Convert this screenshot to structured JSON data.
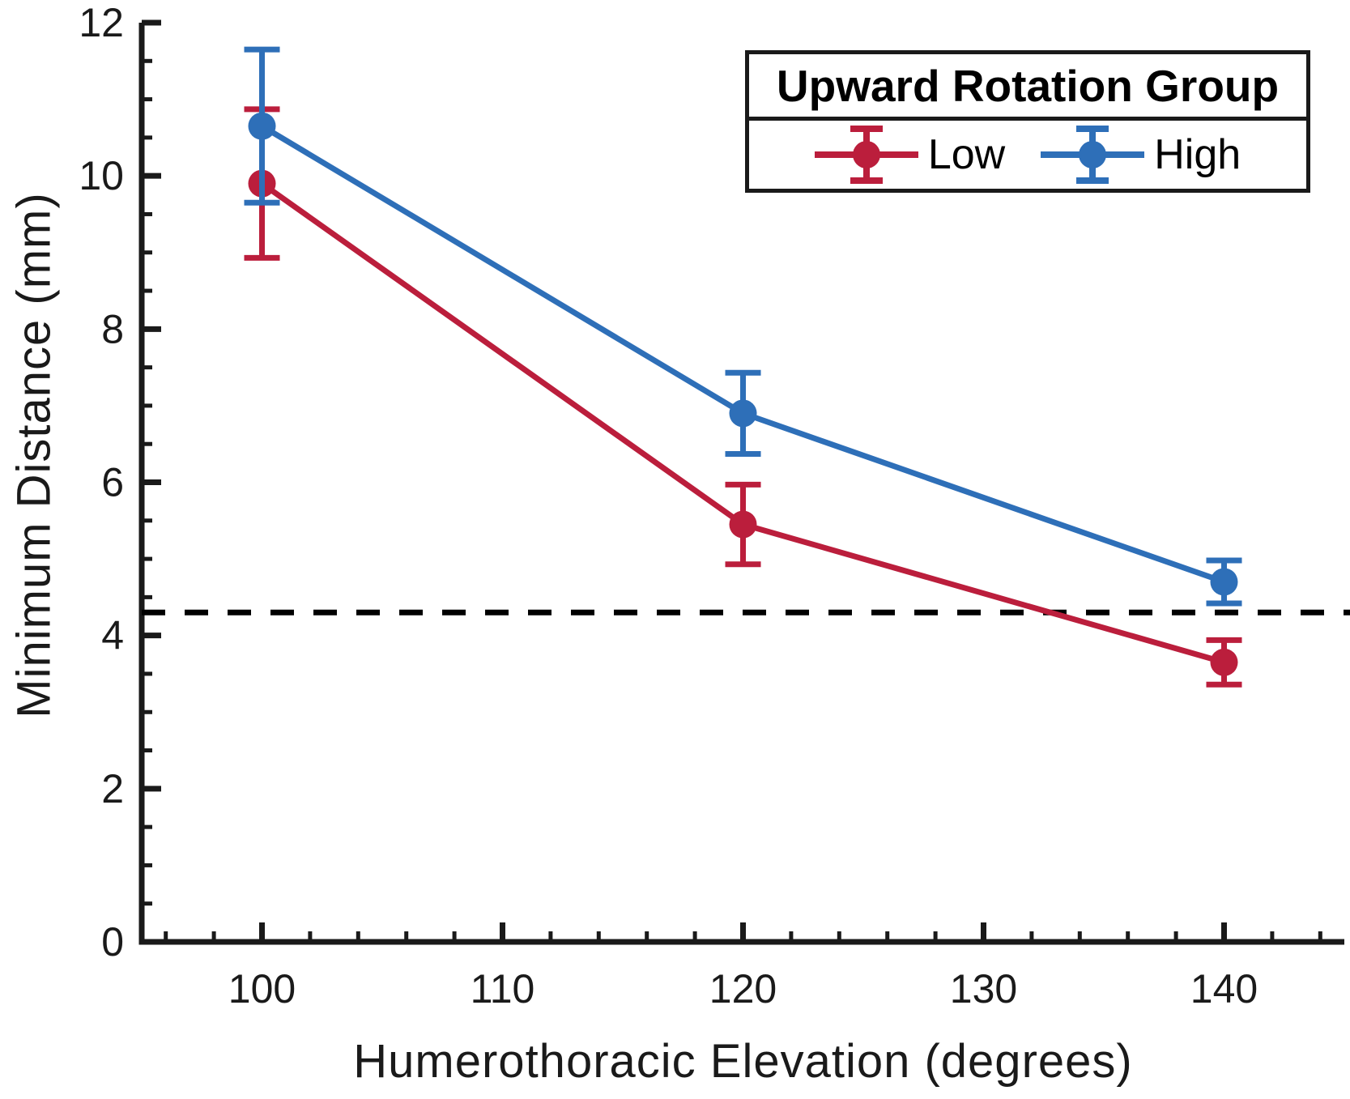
{
  "chart_data": {
    "type": "line",
    "xlabel": "Humerothoracic Elevation (degrees)",
    "ylabel": "Minimum Distance (mm)",
    "x": [
      100,
      120,
      140
    ],
    "xlim": [
      95,
      145
    ],
    "ylim": [
      0,
      12
    ],
    "x_major_ticks": [
      100,
      110,
      120,
      130,
      140
    ],
    "x_minor_step": 2,
    "y_major_ticks": [
      0,
      2,
      4,
      6,
      8,
      10,
      12
    ],
    "y_minor_step": 0.5,
    "grid": false,
    "axis_color": "#1a1a1a",
    "marker": "circle-with-error-bars",
    "reference_line": {
      "y": 4.3,
      "style": "dashed",
      "color": "#000000"
    },
    "legend": {
      "title": "Upward Rotation Group",
      "position": "top-right",
      "items": [
        "Low",
        "High"
      ]
    },
    "series": [
      {
        "name": "Low",
        "color": "#bb1e3c",
        "values": [
          9.9,
          5.45,
          3.65
        ],
        "errors": [
          0.97,
          0.52,
          0.29
        ]
      },
      {
        "name": "High",
        "color": "#2e6fb8",
        "values": [
          10.65,
          6.9,
          4.7
        ],
        "errors": [
          1.0,
          0.53,
          0.28
        ]
      }
    ]
  }
}
